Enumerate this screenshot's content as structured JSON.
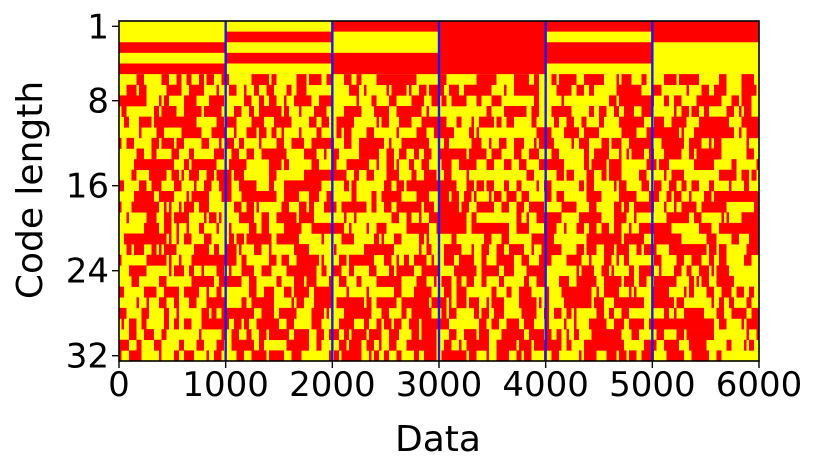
{
  "chart_data": {
    "type": "heatmap",
    "xlabel": "Data",
    "ylabel": "Code length",
    "xlim": [
      0,
      6000
    ],
    "ylim": [
      1,
      32
    ],
    "x_ticks": [
      "0",
      "1000",
      "2000",
      "3000",
      "4000",
      "5000",
      "6000"
    ],
    "x_tick_values": [
      0,
      1000,
      2000,
      3000,
      4000,
      5000,
      6000
    ],
    "y_ticks": [
      "1",
      "8",
      "16",
      "24",
      "32"
    ],
    "y_tick_values": [
      1,
      8,
      16,
      24,
      32
    ],
    "separators_x": [
      1000,
      2000,
      3000,
      4000,
      5000
    ],
    "binary_colors": {
      "0": "#ffff00",
      "1": "#ff0000"
    },
    "separator_color": "#1a1aee",
    "grid": false,
    "structured_rows": {
      "range": [
        1,
        5
      ],
      "groups": [
        {
          "x_range": [
            0,
            1000
          ],
          "bits": [
            0,
            0,
            1,
            0,
            1
          ]
        },
        {
          "x_range": [
            1000,
            2000
          ],
          "bits": [
            0,
            1,
            0,
            1,
            0
          ]
        },
        {
          "x_range": [
            2000,
            3000
          ],
          "bits": [
            1,
            0,
            0,
            1,
            1
          ]
        },
        {
          "x_range": [
            3000,
            4000
          ],
          "bits": [
            1,
            1,
            1,
            1,
            1
          ]
        },
        {
          "x_range": [
            4000,
            5000
          ],
          "bits": [
            1,
            0,
            1,
            1,
            0
          ]
        },
        {
          "x_range": [
            5000,
            6000
          ],
          "bits": [
            1,
            1,
            0,
            0,
            0
          ]
        }
      ]
    },
    "random_rows": {
      "range": [
        6,
        32
      ],
      "fraction_red": 0.5
    }
  }
}
